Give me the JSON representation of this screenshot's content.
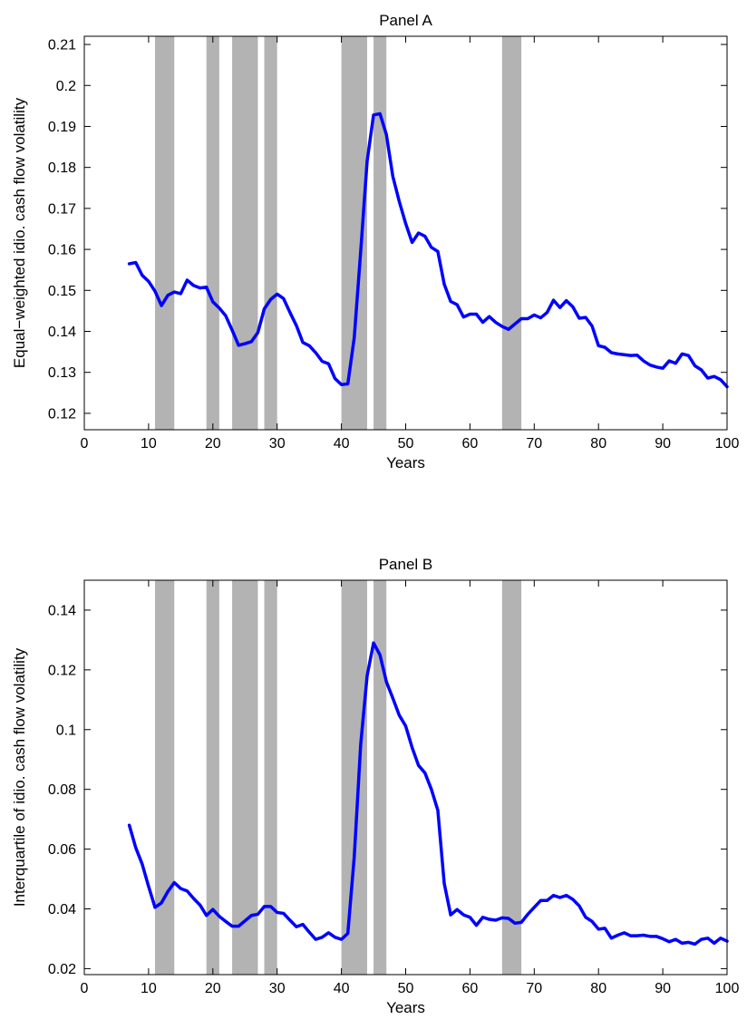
{
  "chart_data": [
    {
      "type": "line",
      "title": "Panel A",
      "xlabel": "Years",
      "ylabel": "Equal−weighted idio. cash flow volatility",
      "xlim": [
        0,
        100
      ],
      "ylim": [
        0.116,
        0.212
      ],
      "xticks": [
        0,
        10,
        20,
        30,
        40,
        50,
        60,
        70,
        80,
        90,
        100
      ],
      "yticks": [
        0.12,
        0.13,
        0.14,
        0.15,
        0.16,
        0.17,
        0.18,
        0.19,
        0.2,
        0.21
      ],
      "ytick_labels": [
        "0.12",
        "0.13",
        "0.14",
        "0.15",
        "0.16",
        "0.17",
        "0.18",
        "0.19",
        "0.2",
        "0.21"
      ],
      "grid": false,
      "shaded_periods": [
        [
          11,
          14
        ],
        [
          19,
          21
        ],
        [
          23,
          27
        ],
        [
          28,
          30
        ],
        [
          40,
          44
        ],
        [
          45,
          47
        ],
        [
          65,
          68
        ]
      ],
      "series": [
        {
          "color": "#0000ff",
          "x": [
            7,
            8,
            9,
            10,
            11,
            12,
            13,
            14,
            15,
            16,
            17,
            18,
            19,
            20,
            21,
            22,
            23,
            24,
            25,
            26,
            27,
            28,
            29,
            30,
            31,
            32,
            33,
            34,
            35,
            36,
            37,
            38,
            39,
            40,
            41,
            42,
            43,
            44,
            45,
            46,
            47,
            48,
            49,
            50,
            51,
            52,
            53,
            54,
            55,
            56,
            57,
            58,
            59,
            60,
            61,
            62,
            63,
            64,
            65,
            66,
            67,
            68,
            69,
            70,
            71,
            72,
            73,
            74,
            75,
            76,
            77,
            78,
            79,
            80,
            81,
            82,
            83,
            84,
            85,
            86,
            87,
            88,
            89,
            90,
            91,
            92,
            93,
            94,
            95,
            96,
            97,
            98,
            99,
            100
          ],
          "y": [
            0.1565,
            0.1568,
            0.1537,
            0.1522,
            0.1498,
            0.1463,
            0.1488,
            0.1496,
            0.1492,
            0.1525,
            0.1512,
            0.1506,
            0.1508,
            0.1472,
            0.1457,
            0.1438,
            0.1403,
            0.1366,
            0.137,
            0.1375,
            0.1397,
            0.1455,
            0.1478,
            0.1491,
            0.148,
            0.1446,
            0.1414,
            0.1373,
            0.1365,
            0.1348,
            0.1327,
            0.1321,
            0.1285,
            0.127,
            0.1272,
            0.1385,
            0.1595,
            0.1815,
            0.1928,
            0.1931,
            0.188,
            0.1778,
            0.1717,
            0.1663,
            0.1617,
            0.164,
            0.1632,
            0.1605,
            0.1595,
            0.1515,
            0.1473,
            0.1465,
            0.1435,
            0.1442,
            0.1442,
            0.1422,
            0.1436,
            0.1422,
            0.1412,
            0.1405,
            0.1418,
            0.1431,
            0.1431,
            0.144,
            0.1433,
            0.1446,
            0.1476,
            0.1458,
            0.1475,
            0.146,
            0.1432,
            0.1434,
            0.1413,
            0.1365,
            0.1361,
            0.1348,
            0.1345,
            0.1343,
            0.1341,
            0.1342,
            0.1328,
            0.1318,
            0.1313,
            0.131,
            0.1328,
            0.1322,
            0.1345,
            0.1341,
            0.1316,
            0.1306,
            0.1286,
            0.129,
            0.1282,
            0.1265
          ]
        }
      ]
    },
    {
      "type": "line",
      "title": "Panel B",
      "xlabel": "Years",
      "ylabel": "Interquartile of idio. cash flow volatility",
      "xlim": [
        0,
        100
      ],
      "ylim": [
        0.018,
        0.15
      ],
      "xticks": [
        0,
        10,
        20,
        30,
        40,
        50,
        60,
        70,
        80,
        90,
        100
      ],
      "yticks": [
        0.02,
        0.04,
        0.06,
        0.08,
        0.1,
        0.12,
        0.14
      ],
      "ytick_labels": [
        "0.02",
        "0.04",
        "0.06",
        "0.08",
        "0.1",
        "0.12",
        "0.14"
      ],
      "grid": false,
      "shaded_periods": [
        [
          11,
          14
        ],
        [
          19,
          21
        ],
        [
          23,
          27
        ],
        [
          28,
          30
        ],
        [
          40,
          44
        ],
        [
          45,
          47
        ],
        [
          65,
          68
        ]
      ],
      "series": [
        {
          "color": "#0000ff",
          "x": [
            7,
            8,
            9,
            10,
            11,
            12,
            13,
            14,
            15,
            16,
            17,
            18,
            19,
            20,
            21,
            22,
            23,
            24,
            25,
            26,
            27,
            28,
            29,
            30,
            31,
            32,
            33,
            34,
            35,
            36,
            37,
            38,
            39,
            40,
            41,
            42,
            43,
            44,
            45,
            46,
            47,
            48,
            49,
            50,
            51,
            52,
            53,
            54,
            55,
            56,
            57,
            58,
            59,
            60,
            61,
            62,
            63,
            64,
            65,
            66,
            67,
            68,
            69,
            70,
            71,
            72,
            73,
            74,
            75,
            76,
            77,
            78,
            79,
            80,
            81,
            82,
            83,
            84,
            85,
            86,
            87,
            88,
            89,
            90,
            91,
            92,
            93,
            94,
            95,
            96,
            97,
            98,
            99,
            100
          ],
          "y": [
            0.068,
            0.0605,
            0.055,
            0.0475,
            0.0405,
            0.042,
            0.0458,
            0.0488,
            0.0468,
            0.046,
            0.0435,
            0.0413,
            0.0378,
            0.0398,
            0.0375,
            0.0358,
            0.0342,
            0.0342,
            0.036,
            0.0378,
            0.0382,
            0.0408,
            0.0408,
            0.0388,
            0.0385,
            0.0362,
            0.034,
            0.0348,
            0.0322,
            0.0298,
            0.0305,
            0.032,
            0.0305,
            0.0298,
            0.0318,
            0.0575,
            0.095,
            0.118,
            0.129,
            0.125,
            0.116,
            0.1105,
            0.1048,
            0.1012,
            0.094,
            0.088,
            0.0855,
            0.08,
            0.073,
            0.0485,
            0.038,
            0.0398,
            0.038,
            0.0372,
            0.0345,
            0.0372,
            0.0365,
            0.0362,
            0.037,
            0.0368,
            0.0352,
            0.0355,
            0.0382,
            0.0405,
            0.0428,
            0.0428,
            0.0445,
            0.0438,
            0.0445,
            0.0432,
            0.041,
            0.0372,
            0.0358,
            0.0332,
            0.0335,
            0.0302,
            0.0312,
            0.032,
            0.031,
            0.031,
            0.0312,
            0.0308,
            0.0308,
            0.03,
            0.029,
            0.0298,
            0.0285,
            0.0288,
            0.0282,
            0.0298,
            0.0302,
            0.0285,
            0.0302,
            0.0292
          ]
        }
      ]
    }
  ]
}
